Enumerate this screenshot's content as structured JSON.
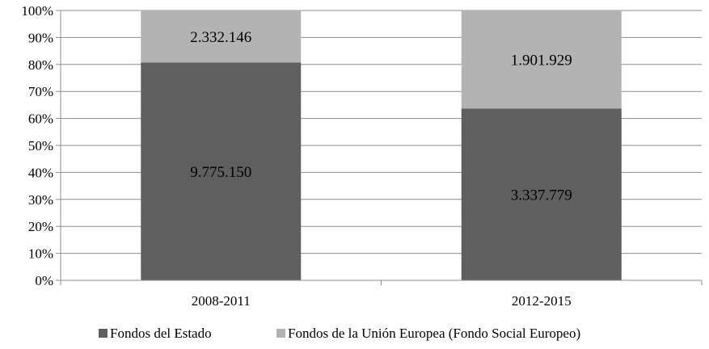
{
  "chart_data": {
    "type": "bar",
    "stacked": "percent",
    "categories": [
      "2008-2011",
      "2012-2015"
    ],
    "series": [
      {
        "name": "Fondos del Estado",
        "values": [
          9775150,
          3337779
        ],
        "labels": [
          "9.775.150",
          "3.337.779"
        ],
        "color": "#5f5f5f"
      },
      {
        "name": "Fondos de la Unión Europea (Fondo Social Europeo)",
        "values": [
          2332146,
          1901929
        ],
        "labels": [
          "2.332.146",
          "1.901.929"
        ],
        "color": "#b3b3b3"
      }
    ],
    "yticks": [
      "0%",
      "10%",
      "20%",
      "30%",
      "40%",
      "50%",
      "60%",
      "70%",
      "80%",
      "90%",
      "100%"
    ],
    "ylim": [
      0,
      100
    ],
    "grid": true,
    "legend_position": "bottom"
  }
}
